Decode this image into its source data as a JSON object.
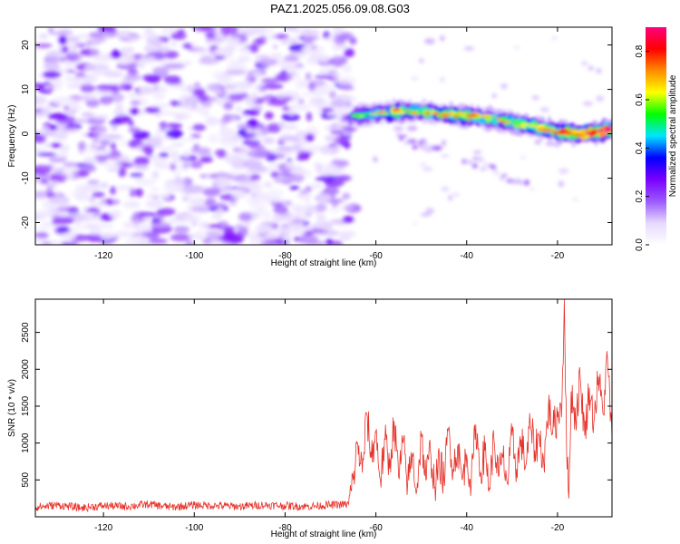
{
  "page": {
    "title": "PAZ1.2025.056.09.08.G03"
  },
  "chart_data": [
    {
      "type": "heatmap",
      "id": "spectrogram",
      "xlabel": "Height of straight line (km)",
      "ylabel": "Frequency (Hz)",
      "xlim": [
        -135,
        -8
      ],
      "ylim": [
        -25,
        24
      ],
      "xticks": [
        -120,
        -100,
        -80,
        -60,
        -40,
        -20
      ],
      "yticks": [
        -20,
        -10,
        0,
        10,
        20
      ],
      "grid": false,
      "noise_region": {
        "x": [
          -135,
          -65
        ],
        "y": [
          -25,
          24
        ],
        "amplitude_range": [
          0.05,
          0.3
        ]
      },
      "signal_ridge": {
        "x": [
          -65,
          -60,
          -55,
          -50,
          -45,
          -40,
          -35,
          -30,
          -25,
          -20,
          -15,
          -10,
          -8
        ],
        "frequency": [
          4.0,
          4.5,
          5.0,
          5.0,
          4.5,
          4.0,
          3.5,
          2.5,
          1.5,
          0.5,
          0.0,
          0.5,
          1.0
        ],
        "amplitude": [
          0.4,
          0.5,
          0.55,
          0.55,
          0.6,
          0.6,
          0.55,
          0.55,
          0.6,
          0.65,
          0.7,
          0.85,
          0.9
        ]
      },
      "secondary_branch": {
        "x": [
          -55,
          -50,
          -45,
          -40,
          -35,
          -30,
          -25
        ],
        "frequency": [
          -1.0,
          -2.5,
          -4.0,
          -5.5,
          -8.0,
          -10.0,
          -13.0
        ],
        "amplitude": [
          0.2,
          0.2,
          0.15,
          0.15,
          0.15,
          0.2,
          0.15
        ]
      }
    },
    {
      "type": "colorbar",
      "id": "amplitude-colorbar",
      "label": "Normalized spectral amplitude",
      "range": [
        0.0,
        0.9
      ],
      "ticks": [
        "0.0",
        "0.2",
        "0.4",
        "0.6",
        "0.8"
      ],
      "colors": [
        "#ffffff",
        "#e6d9ff",
        "#9b59ff",
        "#7a00ff",
        "#0000ff",
        "#00e5ff",
        "#00ff00",
        "#ffff00",
        "#ff8c00",
        "#ff0000",
        "#ff007f"
      ]
    },
    {
      "type": "line",
      "id": "snr",
      "xlabel": "Height of straight line (km)",
      "ylabel": "SNR (10 * v/v)",
      "xlim": [
        -135,
        -8
      ],
      "ylim": [
        0,
        2950
      ],
      "xticks": [
        -120,
        -100,
        -80,
        -60,
        -40,
        -20
      ],
      "yticks": [
        500,
        1000,
        1500,
        2000,
        2500
      ],
      "grid": false,
      "series": [
        {
          "color": "#e8322a",
          "x": [
            -135,
            -130,
            -125,
            -120,
            -115,
            -110,
            -105,
            -100,
            -95,
            -90,
            -85,
            -80,
            -75,
            -70,
            -66,
            -65,
            -64,
            -63,
            -62,
            -61,
            -60,
            -59,
            -58,
            -57,
            -56,
            -55,
            -54,
            -53,
            -52,
            -51,
            -50,
            -49,
            -48,
            -47,
            -46,
            -45,
            -44,
            -43,
            -42,
            -41,
            -40,
            -39,
            -38,
            -37,
            -36,
            -35,
            -34,
            -33,
            -32,
            -31,
            -30,
            -29,
            -28,
            -27,
            -26,
            -25,
            -24,
            -23,
            -22,
            -21,
            -20,
            -19,
            -18.5,
            -18,
            -17.5,
            -17,
            -16,
            -15,
            -14,
            -13,
            -12,
            -11,
            -10,
            -9,
            -8
          ],
          "values": [
            130,
            160,
            120,
            150,
            140,
            170,
            130,
            160,
            150,
            140,
            160,
            150,
            140,
            160,
            170,
            500,
            1000,
            600,
            1400,
            800,
            1150,
            500,
            1050,
            650,
            1300,
            550,
            1000,
            450,
            850,
            350,
            1100,
            500,
            900,
            400,
            750,
            500,
            1200,
            650,
            950,
            500,
            850,
            450,
            1250,
            600,
            900,
            400,
            1050,
            550,
            800,
            450,
            1100,
            650,
            1050,
            700,
            1250,
            900,
            1100,
            700,
            1500,
            1200,
            1350,
            1600,
            2950,
            900,
            250,
            1700,
            1300,
            1900,
            1100,
            1750,
            1300,
            1900,
            1400,
            2150,
            1050
          ]
        }
      ]
    }
  ]
}
